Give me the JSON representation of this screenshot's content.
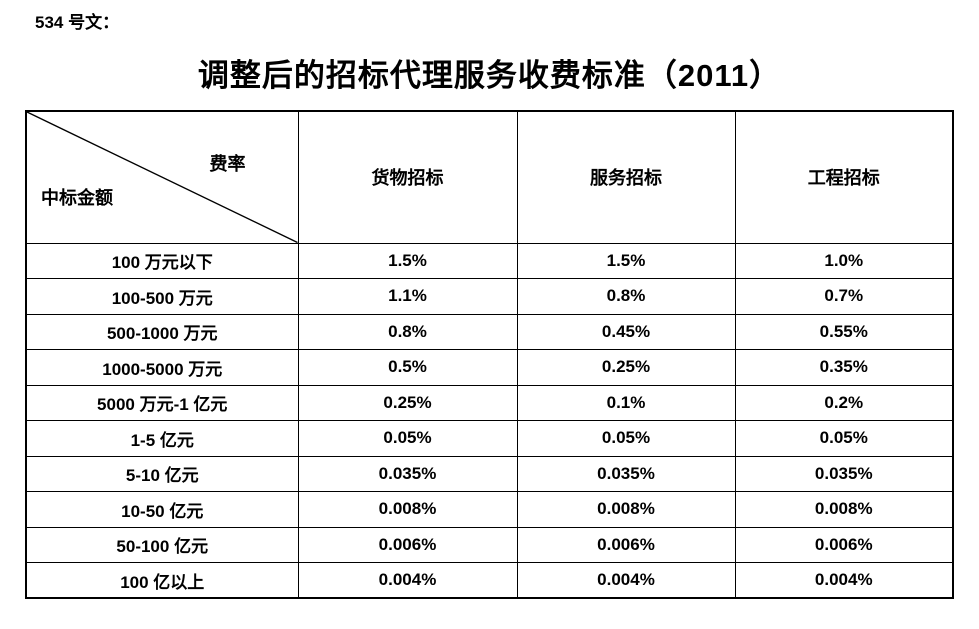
{
  "doc_label": "534 号文：",
  "title": "调整后的招标代理服务收费标准（2011）",
  "table": {
    "corner": {
      "top_right": "费率",
      "bottom_left": "中标金额"
    },
    "columns": [
      "货物招标",
      "服务招标",
      "工程招标"
    ],
    "rows": [
      {
        "amount": "100 万元以下",
        "values": [
          "1.5%",
          "1.5%",
          "1.0%"
        ]
      },
      {
        "amount": "100-500 万元",
        "values": [
          "1.1%",
          "0.8%",
          "0.7%"
        ]
      },
      {
        "amount": "500-1000 万元",
        "values": [
          "0.8%",
          "0.45%",
          "0.55%"
        ]
      },
      {
        "amount": "1000-5000 万元",
        "values": [
          "0.5%",
          "0.25%",
          "0.35%"
        ]
      },
      {
        "amount": "5000 万元-1 亿元",
        "values": [
          "0.25%",
          "0.1%",
          "0.2%"
        ]
      },
      {
        "amount": "1-5 亿元",
        "values": [
          "0.05%",
          "0.05%",
          "0.05%"
        ]
      },
      {
        "amount": "5-10 亿元",
        "values": [
          "0.035%",
          "0.035%",
          "0.035%"
        ]
      },
      {
        "amount": "10-50 亿元",
        "values": [
          "0.008%",
          "0.008%",
          "0.008%"
        ]
      },
      {
        "amount": "50-100 亿元",
        "values": [
          "0.006%",
          "0.006%",
          "0.006%"
        ]
      },
      {
        "amount": "100 亿以上",
        "values": [
          "0.004%",
          "0.004%",
          "0.004%"
        ]
      }
    ]
  },
  "colors": {
    "text": "#000000",
    "border": "#000000",
    "background": "#ffffff"
  }
}
